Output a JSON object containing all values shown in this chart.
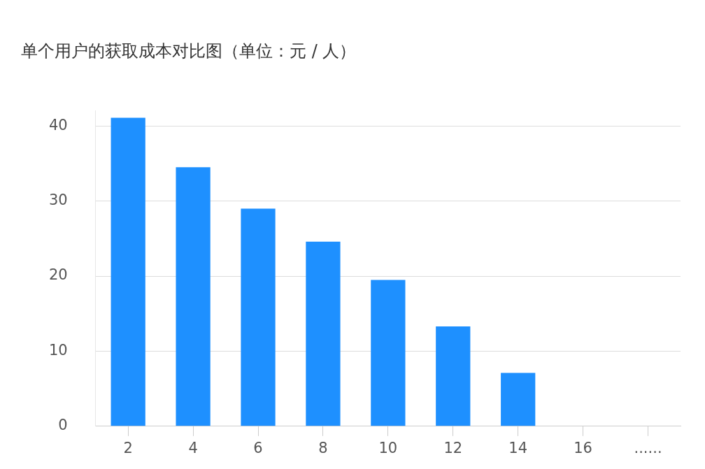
{
  "chart_data": {
    "type": "bar",
    "title": "单个用户的获取成本对比图（单位：元 / 人）",
    "categories": [
      "2",
      "4",
      "6",
      "8",
      "10",
      "12",
      "14",
      "16",
      "......"
    ],
    "values": [
      41.1,
      34.5,
      29.0,
      24.6,
      19.5,
      13.3,
      7.1,
      null,
      null
    ],
    "color": "#1e90ff",
    "ylim": [
      0,
      42
    ],
    "yticks": [
      0,
      10,
      20,
      30,
      40
    ],
    "grid": "y",
    "legend": false
  }
}
